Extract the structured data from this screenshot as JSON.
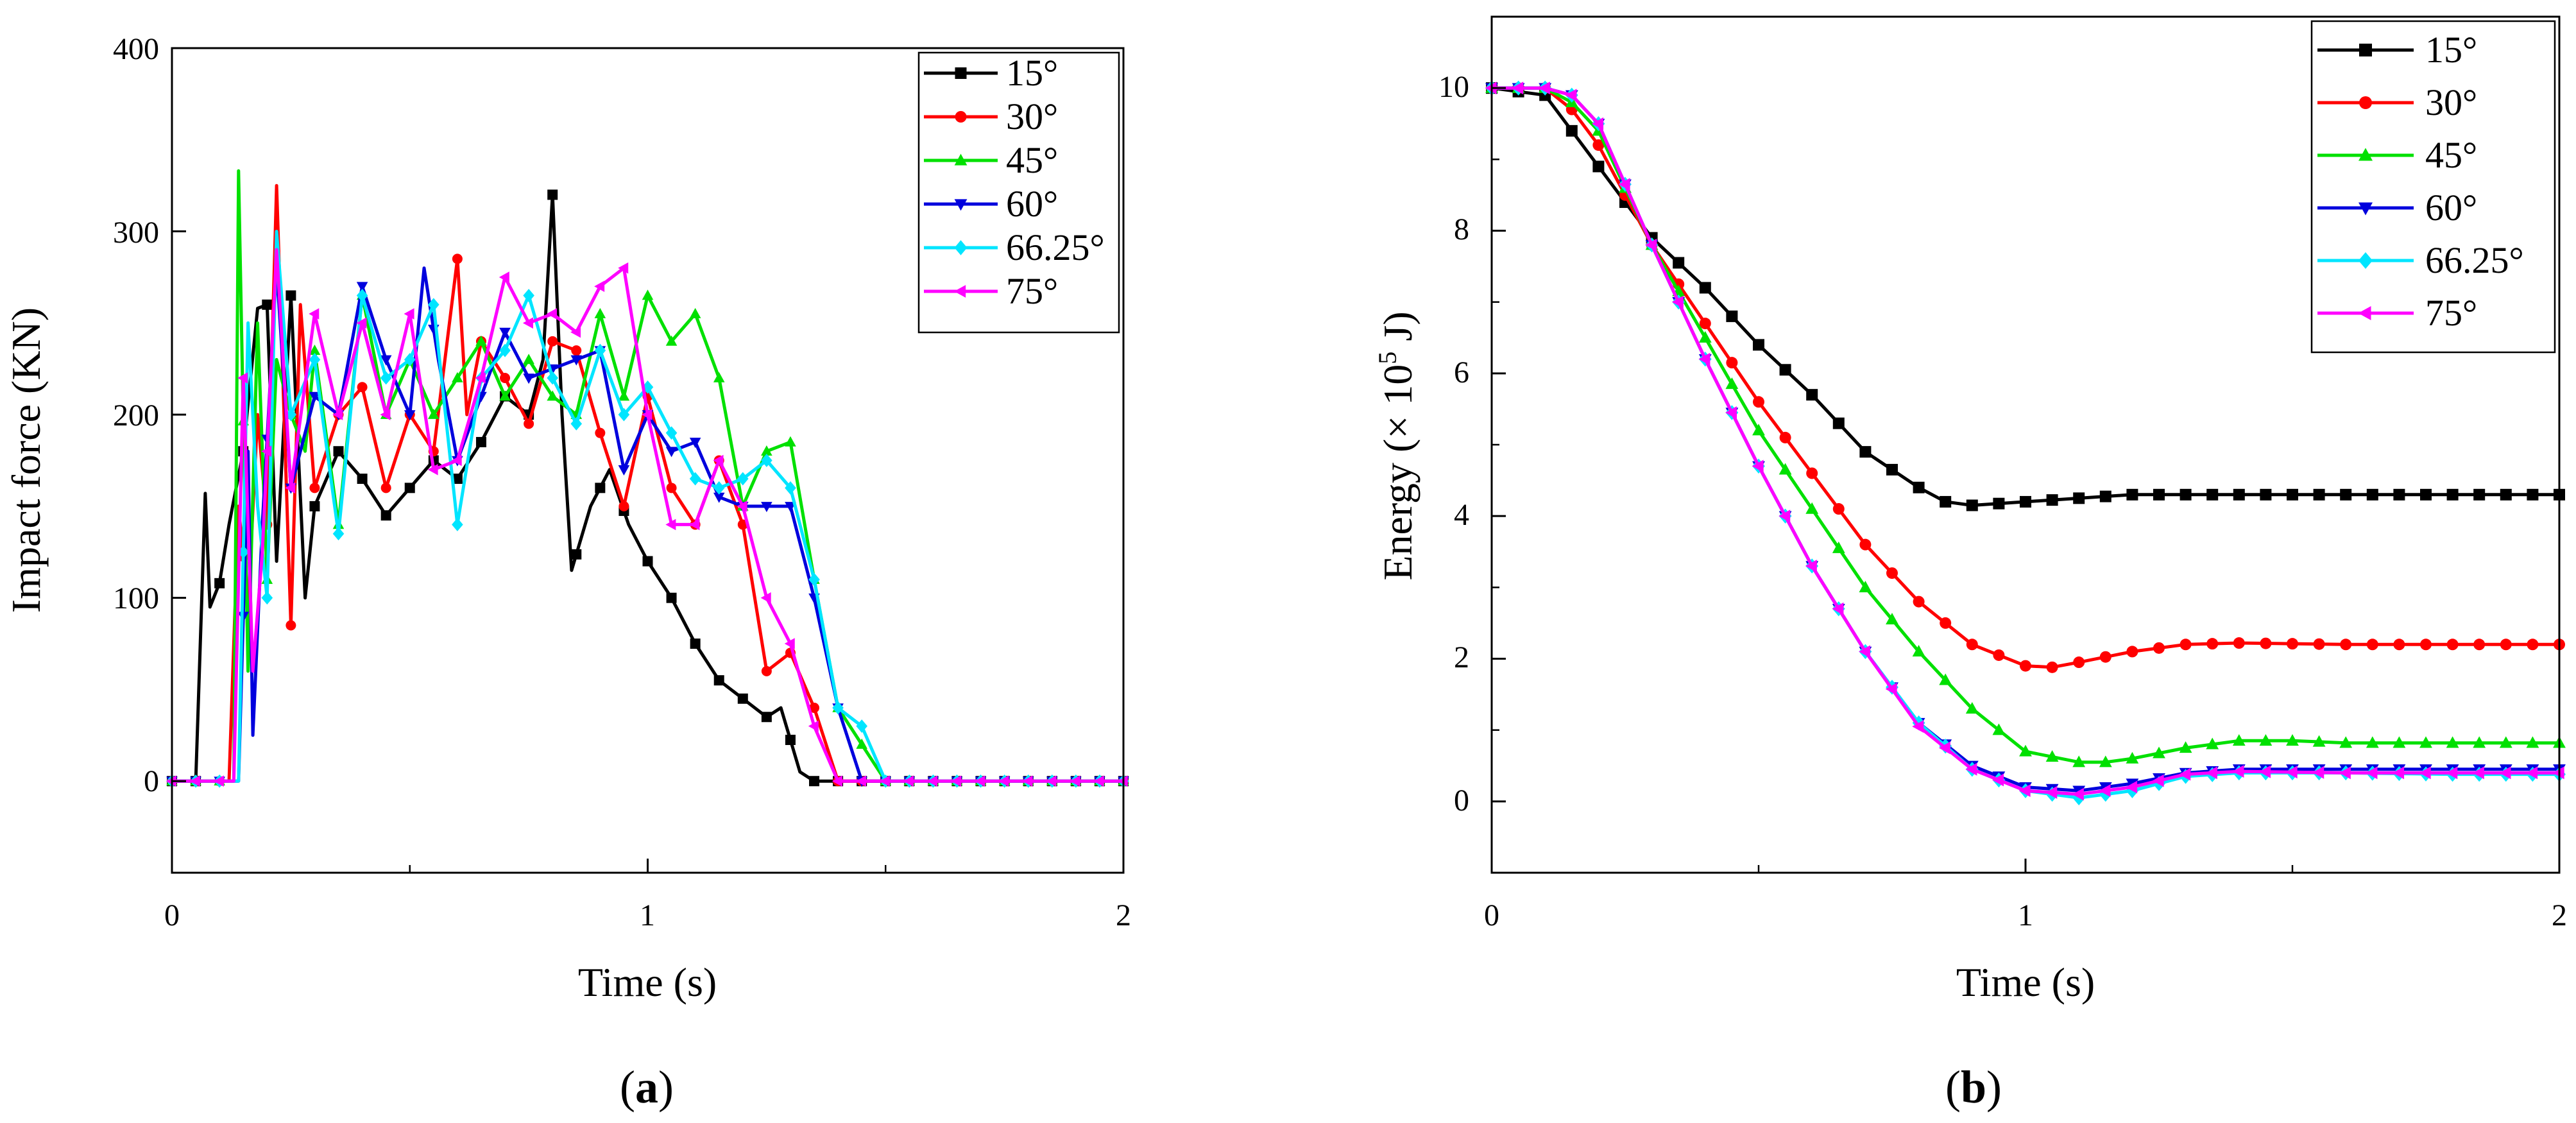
{
  "chart_data": [
    {
      "type": "line",
      "panel_label": "(a)",
      "panel_letter": "a",
      "xlabel": "Time (s)",
      "ylabel": "Impact force (KN)",
      "xlim": [
        0,
        2
      ],
      "ylim": [
        -50,
        400
      ],
      "xticks": [
        "0",
        "1",
        "2"
      ],
      "yticks": [
        "0",
        "100",
        "200",
        "300",
        "400"
      ],
      "legend": "top-right",
      "series": [
        {
          "name": "15°",
          "color": "#000000",
          "marker": "square",
          "x": [
            0,
            0.05,
            0.07,
            0.08,
            0.1,
            0.12,
            0.15,
            0.18,
            0.2,
            0.22,
            0.25,
            0.28,
            0.3,
            0.35,
            0.4,
            0.45,
            0.5,
            0.55,
            0.6,
            0.65,
            0.7,
            0.75,
            0.78,
            0.8,
            0.82,
            0.84,
            0.88,
            0.92,
            0.96,
            1.0,
            1.05,
            1.1,
            1.15,
            1.2,
            1.25,
            1.28,
            1.32,
            1.35,
            1.4,
            1.6,
            1.8,
            2.0
          ],
          "y": [
            0,
            0,
            157,
            95,
            108,
            140,
            180,
            258,
            260,
            120,
            265,
            100,
            150,
            180,
            165,
            145,
            160,
            175,
            165,
            185,
            210,
            200,
            230,
            320,
            200,
            115,
            150,
            170,
            140,
            120,
            100,
            75,
            55,
            45,
            35,
            40,
            5,
            0,
            0,
            0,
            0,
            0
          ]
        },
        {
          "name": "30°",
          "color": "#ff0000",
          "marker": "circle",
          "x": [
            0,
            0.12,
            0.14,
            0.16,
            0.18,
            0.2,
            0.22,
            0.25,
            0.27,
            0.3,
            0.35,
            0.4,
            0.45,
            0.5,
            0.55,
            0.6,
            0.62,
            0.65,
            0.7,
            0.75,
            0.8,
            0.85,
            0.9,
            0.95,
            1.0,
            1.05,
            1.1,
            1.15,
            1.2,
            1.25,
            1.3,
            1.35,
            1.4,
            1.6,
            1.8,
            2.0
          ],
          "y": [
            0,
            0,
            150,
            95,
            200,
            140,
            325,
            85,
            260,
            160,
            200,
            215,
            160,
            200,
            180,
            285,
            200,
            240,
            220,
            195,
            240,
            235,
            190,
            150,
            210,
            160,
            140,
            175,
            140,
            60,
            70,
            40,
            0,
            0,
            0,
            0
          ]
        },
        {
          "name": "45°",
          "color": "#00e000",
          "marker": "triangle-up",
          "x": [
            0,
            0.13,
            0.14,
            0.16,
            0.18,
            0.2,
            0.22,
            0.25,
            0.28,
            0.3,
            0.35,
            0.4,
            0.45,
            0.5,
            0.55,
            0.6,
            0.65,
            0.7,
            0.75,
            0.8,
            0.85,
            0.9,
            0.95,
            1.0,
            1.05,
            1.1,
            1.15,
            1.2,
            1.25,
            1.3,
            1.35,
            1.4,
            1.45,
            1.5,
            1.6,
            1.8,
            2.0
          ],
          "y": [
            0,
            0,
            333,
            60,
            250,
            110,
            230,
            200,
            180,
            235,
            140,
            265,
            200,
            230,
            200,
            220,
            240,
            210,
            230,
            210,
            200,
            255,
            210,
            265,
            240,
            255,
            220,
            150,
            180,
            185,
            110,
            40,
            20,
            0,
            0,
            0,
            0
          ]
        },
        {
          "name": "60°",
          "color": "#0000dd",
          "marker": "triangle-down",
          "x": [
            0,
            0.14,
            0.16,
            0.17,
            0.19,
            0.22,
            0.25,
            0.3,
            0.35,
            0.4,
            0.45,
            0.5,
            0.53,
            0.56,
            0.6,
            0.65,
            0.7,
            0.75,
            0.8,
            0.85,
            0.9,
            0.95,
            1.0,
            1.05,
            1.1,
            1.15,
            1.2,
            1.25,
            1.3,
            1.35,
            1.4,
            1.45,
            1.6,
            1.8,
            2.0
          ],
          "y": [
            0,
            0,
            180,
            25,
            140,
            280,
            160,
            210,
            200,
            270,
            230,
            200,
            280,
            230,
            175,
            210,
            245,
            220,
            225,
            230,
            235,
            170,
            200,
            180,
            185,
            155,
            150,
            150,
            150,
            100,
            40,
            0,
            0,
            0,
            0
          ]
        },
        {
          "name": "66.25°",
          "color": "#00e5ff",
          "marker": "diamond",
          "x": [
            0,
            0.14,
            0.16,
            0.18,
            0.2,
            0.22,
            0.25,
            0.3,
            0.35,
            0.4,
            0.45,
            0.5,
            0.55,
            0.6,
            0.65,
            0.7,
            0.75,
            0.8,
            0.85,
            0.9,
            0.95,
            1.0,
            1.05,
            1.1,
            1.15,
            1.2,
            1.25,
            1.3,
            1.35,
            1.4,
            1.45,
            1.5,
            1.6,
            1.8,
            2.0
          ],
          "y": [
            0,
            0,
            250,
            150,
            100,
            300,
            200,
            230,
            135,
            265,
            220,
            230,
            260,
            140,
            220,
            235,
            265,
            220,
            195,
            235,
            200,
            215,
            190,
            165,
            160,
            165,
            175,
            160,
            110,
            40,
            30,
            0,
            0,
            0,
            0
          ]
        },
        {
          "name": "75°",
          "color": "#ff00ff",
          "marker": "triangle-left",
          "x": [
            0,
            0.13,
            0.15,
            0.17,
            0.19,
            0.22,
            0.25,
            0.3,
            0.35,
            0.4,
            0.45,
            0.5,
            0.55,
            0.6,
            0.65,
            0.7,
            0.75,
            0.8,
            0.85,
            0.9,
            0.95,
            1.0,
            1.05,
            1.1,
            1.15,
            1.2,
            1.25,
            1.3,
            1.35,
            1.4,
            1.45,
            1.6,
            1.8,
            2.0
          ],
          "y": [
            0,
            0,
            220,
            60,
            125,
            290,
            160,
            255,
            200,
            250,
            200,
            255,
            170,
            175,
            220,
            275,
            250,
            255,
            245,
            270,
            280,
            200,
            140,
            140,
            175,
            150,
            100,
            75,
            30,
            0,
            0,
            0,
            0,
            0
          ]
        }
      ]
    },
    {
      "type": "line",
      "panel_label": "(b)",
      "panel_letter": "b",
      "xlabel": "Time (s)",
      "ylabel": "Energy (× 10⁵ J)",
      "ylabel_main": "Energy (× 10",
      "ylabel_sup": "5",
      "ylabel_tail": " J)",
      "xlim": [
        0,
        2
      ],
      "ylim": [
        -1,
        11
      ],
      "xticks": [
        "0",
        "1",
        "2"
      ],
      "yticks": [
        "0",
        "2",
        "4",
        "6",
        "8",
        "10"
      ],
      "legend": "top-right",
      "series": [
        {
          "name": "15°",
          "color": "#000000",
          "marker": "square",
          "x": [
            0,
            0.1,
            0.2,
            0.3,
            0.4,
            0.5,
            0.6,
            0.7,
            0.8,
            0.85,
            0.9,
            1.0,
            1.1,
            1.2,
            1.4,
            1.6,
            1.8,
            2.0
          ],
          "y": [
            10,
            9.9,
            8.9,
            7.9,
            7.2,
            6.4,
            5.7,
            4.9,
            4.4,
            4.2,
            4.15,
            4.2,
            4.25,
            4.3,
            4.3,
            4.3,
            4.3,
            4.3
          ]
        },
        {
          "name": "30°",
          "color": "#ff0000",
          "marker": "circle",
          "x": [
            0,
            0.1,
            0.15,
            0.2,
            0.3,
            0.4,
            0.5,
            0.6,
            0.7,
            0.8,
            0.9,
            1.0,
            1.05,
            1.1,
            1.2,
            1.3,
            1.4,
            1.6,
            1.8,
            2.0
          ],
          "y": [
            10,
            10,
            9.7,
            9.2,
            7.8,
            6.7,
            5.6,
            4.6,
            3.6,
            2.8,
            2.2,
            1.9,
            1.88,
            1.95,
            2.1,
            2.2,
            2.22,
            2.2,
            2.2,
            2.2
          ]
        },
        {
          "name": "45°",
          "color": "#00e000",
          "marker": "triangle-up",
          "x": [
            0,
            0.1,
            0.15,
            0.2,
            0.3,
            0.4,
            0.5,
            0.6,
            0.7,
            0.8,
            0.9,
            1.0,
            1.1,
            1.15,
            1.2,
            1.3,
            1.4,
            1.5,
            1.6,
            1.8,
            2.0
          ],
          "y": [
            10,
            10,
            9.8,
            9.4,
            7.8,
            6.5,
            5.2,
            4.1,
            3.0,
            2.1,
            1.3,
            0.7,
            0.55,
            0.55,
            0.6,
            0.75,
            0.85,
            0.85,
            0.82,
            0.82,
            0.82
          ]
        },
        {
          "name": "60°",
          "color": "#0000dd",
          "marker": "triangle-down",
          "x": [
            0,
            0.1,
            0.15,
            0.2,
            0.3,
            0.4,
            0.5,
            0.6,
            0.7,
            0.8,
            0.9,
            1.0,
            1.1,
            1.2,
            1.3,
            1.4,
            1.6,
            1.8,
            2.0
          ],
          "y": [
            10,
            10,
            9.9,
            9.5,
            7.8,
            6.2,
            4.7,
            3.3,
            2.1,
            1.1,
            0.5,
            0.2,
            0.15,
            0.25,
            0.4,
            0.45,
            0.45,
            0.45,
            0.45
          ]
        },
        {
          "name": "66.25°",
          "color": "#00e5ff",
          "marker": "diamond",
          "x": [
            0,
            0.1,
            0.15,
            0.2,
            0.3,
            0.4,
            0.5,
            0.6,
            0.7,
            0.8,
            0.9,
            1.0,
            1.1,
            1.2,
            1.3,
            1.4,
            1.6,
            1.8,
            2.0
          ],
          "y": [
            10,
            10,
            9.9,
            9.5,
            7.8,
            6.2,
            4.7,
            3.3,
            2.1,
            1.1,
            0.45,
            0.15,
            0.05,
            0.15,
            0.35,
            0.4,
            0.4,
            0.38,
            0.38
          ]
        },
        {
          "name": "75°",
          "color": "#ff00ff",
          "marker": "triangle-left",
          "x": [
            0,
            0.1,
            0.15,
            0.2,
            0.3,
            0.4,
            0.5,
            0.6,
            0.7,
            0.8,
            0.9,
            1.0,
            1.1,
            1.2,
            1.3,
            1.4,
            1.6,
            1.8,
            2.0
          ],
          "y": [
            10,
            10,
            9.9,
            9.5,
            7.8,
            6.2,
            4.7,
            3.3,
            2.1,
            1.05,
            0.45,
            0.15,
            0.1,
            0.2,
            0.38,
            0.42,
            0.4,
            0.4,
            0.4
          ]
        }
      ]
    }
  ]
}
